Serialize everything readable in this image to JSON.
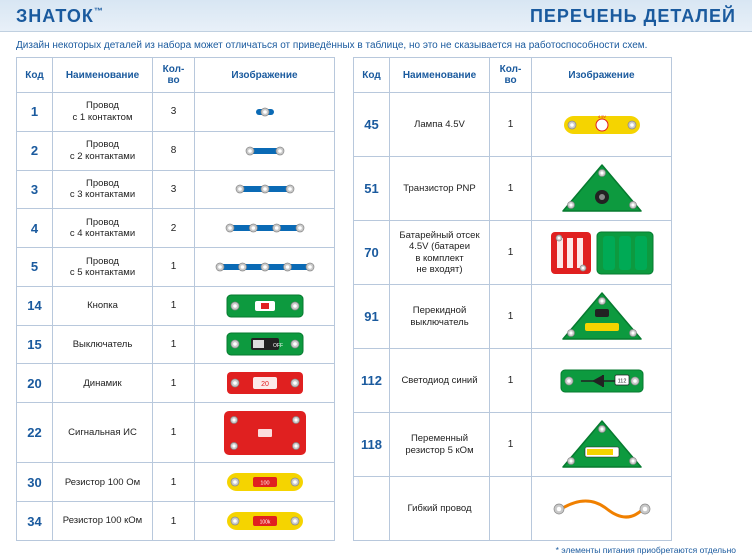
{
  "brand": "ЗНАТОК",
  "brand_tm": "™",
  "page_title": "ПЕРЕЧЕНЬ ДЕТАЛЕЙ",
  "note": "Дизайн некоторых деталей из набора может отличаться от приведённых в таблице, но это не сказывается на работоспособности схем.",
  "headers": {
    "code": "Код",
    "name": "Наименование",
    "qty": "Кол-во",
    "image": "Изображение"
  },
  "footnote": "* элементы питания приобретаются отдельно",
  "colors": {
    "header_bg_top": "#d8e6f3",
    "header_bg_bottom": "#e8f0f8",
    "brand_color": "#1a5a9e",
    "border": "#b8c8dc",
    "wire_blue": "#0a6ab5",
    "wire_snap": "#c9c9c9",
    "pcb_green": "#0d9a3f",
    "pcb_green_dark": "#067a2f",
    "red": "#e02020",
    "yellow": "#f5d400",
    "orange": "#f08000",
    "grey": "#bfbfbf",
    "black": "#111111"
  },
  "left_table": [
    {
      "code": "1",
      "name": "Провод\nс 1 контактом",
      "qty": "3",
      "img": "wire1"
    },
    {
      "code": "2",
      "name": "Провод\nс 2 контактами",
      "qty": "8",
      "img": "wire2"
    },
    {
      "code": "3",
      "name": "Провод\nс 3 контактами",
      "qty": "3",
      "img": "wire3"
    },
    {
      "code": "4",
      "name": "Провод\nс 4 контактами",
      "qty": "2",
      "img": "wire4"
    },
    {
      "code": "5",
      "name": "Провод\nс 5 контактами",
      "qty": "1",
      "img": "wire5"
    },
    {
      "code": "14",
      "name": "Кнопка",
      "qty": "1",
      "img": "button"
    },
    {
      "code": "15",
      "name": "Выключатель",
      "qty": "1",
      "img": "switch"
    },
    {
      "code": "20",
      "name": "Динамик",
      "qty": "1",
      "img": "speaker"
    },
    {
      "code": "22",
      "name": "Сигнальная ИС",
      "qty": "1",
      "img": "ic"
    },
    {
      "code": "30",
      "name": "Резистор 100 Ом",
      "qty": "1",
      "img": "res100"
    },
    {
      "code": "34",
      "name": "Резистор 100 кОм",
      "qty": "1",
      "img": "res100k"
    }
  ],
  "right_table": [
    {
      "code": "45",
      "name": "Лампа 4.5V",
      "qty": "1",
      "img": "lamp"
    },
    {
      "code": "51",
      "name": "Транзистор PNP",
      "qty": "1",
      "img": "pnp"
    },
    {
      "code": "70",
      "name": "Батарейный отсек\n4.5V (батареи\nв комплект\nне входят)",
      "qty": "1",
      "img": "battery"
    },
    {
      "code": "91",
      "name": "Перекидной\nвыключатель",
      "qty": "1",
      "img": "toggle"
    },
    {
      "code": "112",
      "name": "Светодиод синий",
      "qty": "1",
      "img": "led"
    },
    {
      "code": "118",
      "name": "Переменный\nрезистор 5 кОм",
      "qty": "1",
      "img": "pot"
    },
    {
      "code": "",
      "name": "Гибкий провод",
      "qty": "",
      "img": "flex"
    }
  ]
}
